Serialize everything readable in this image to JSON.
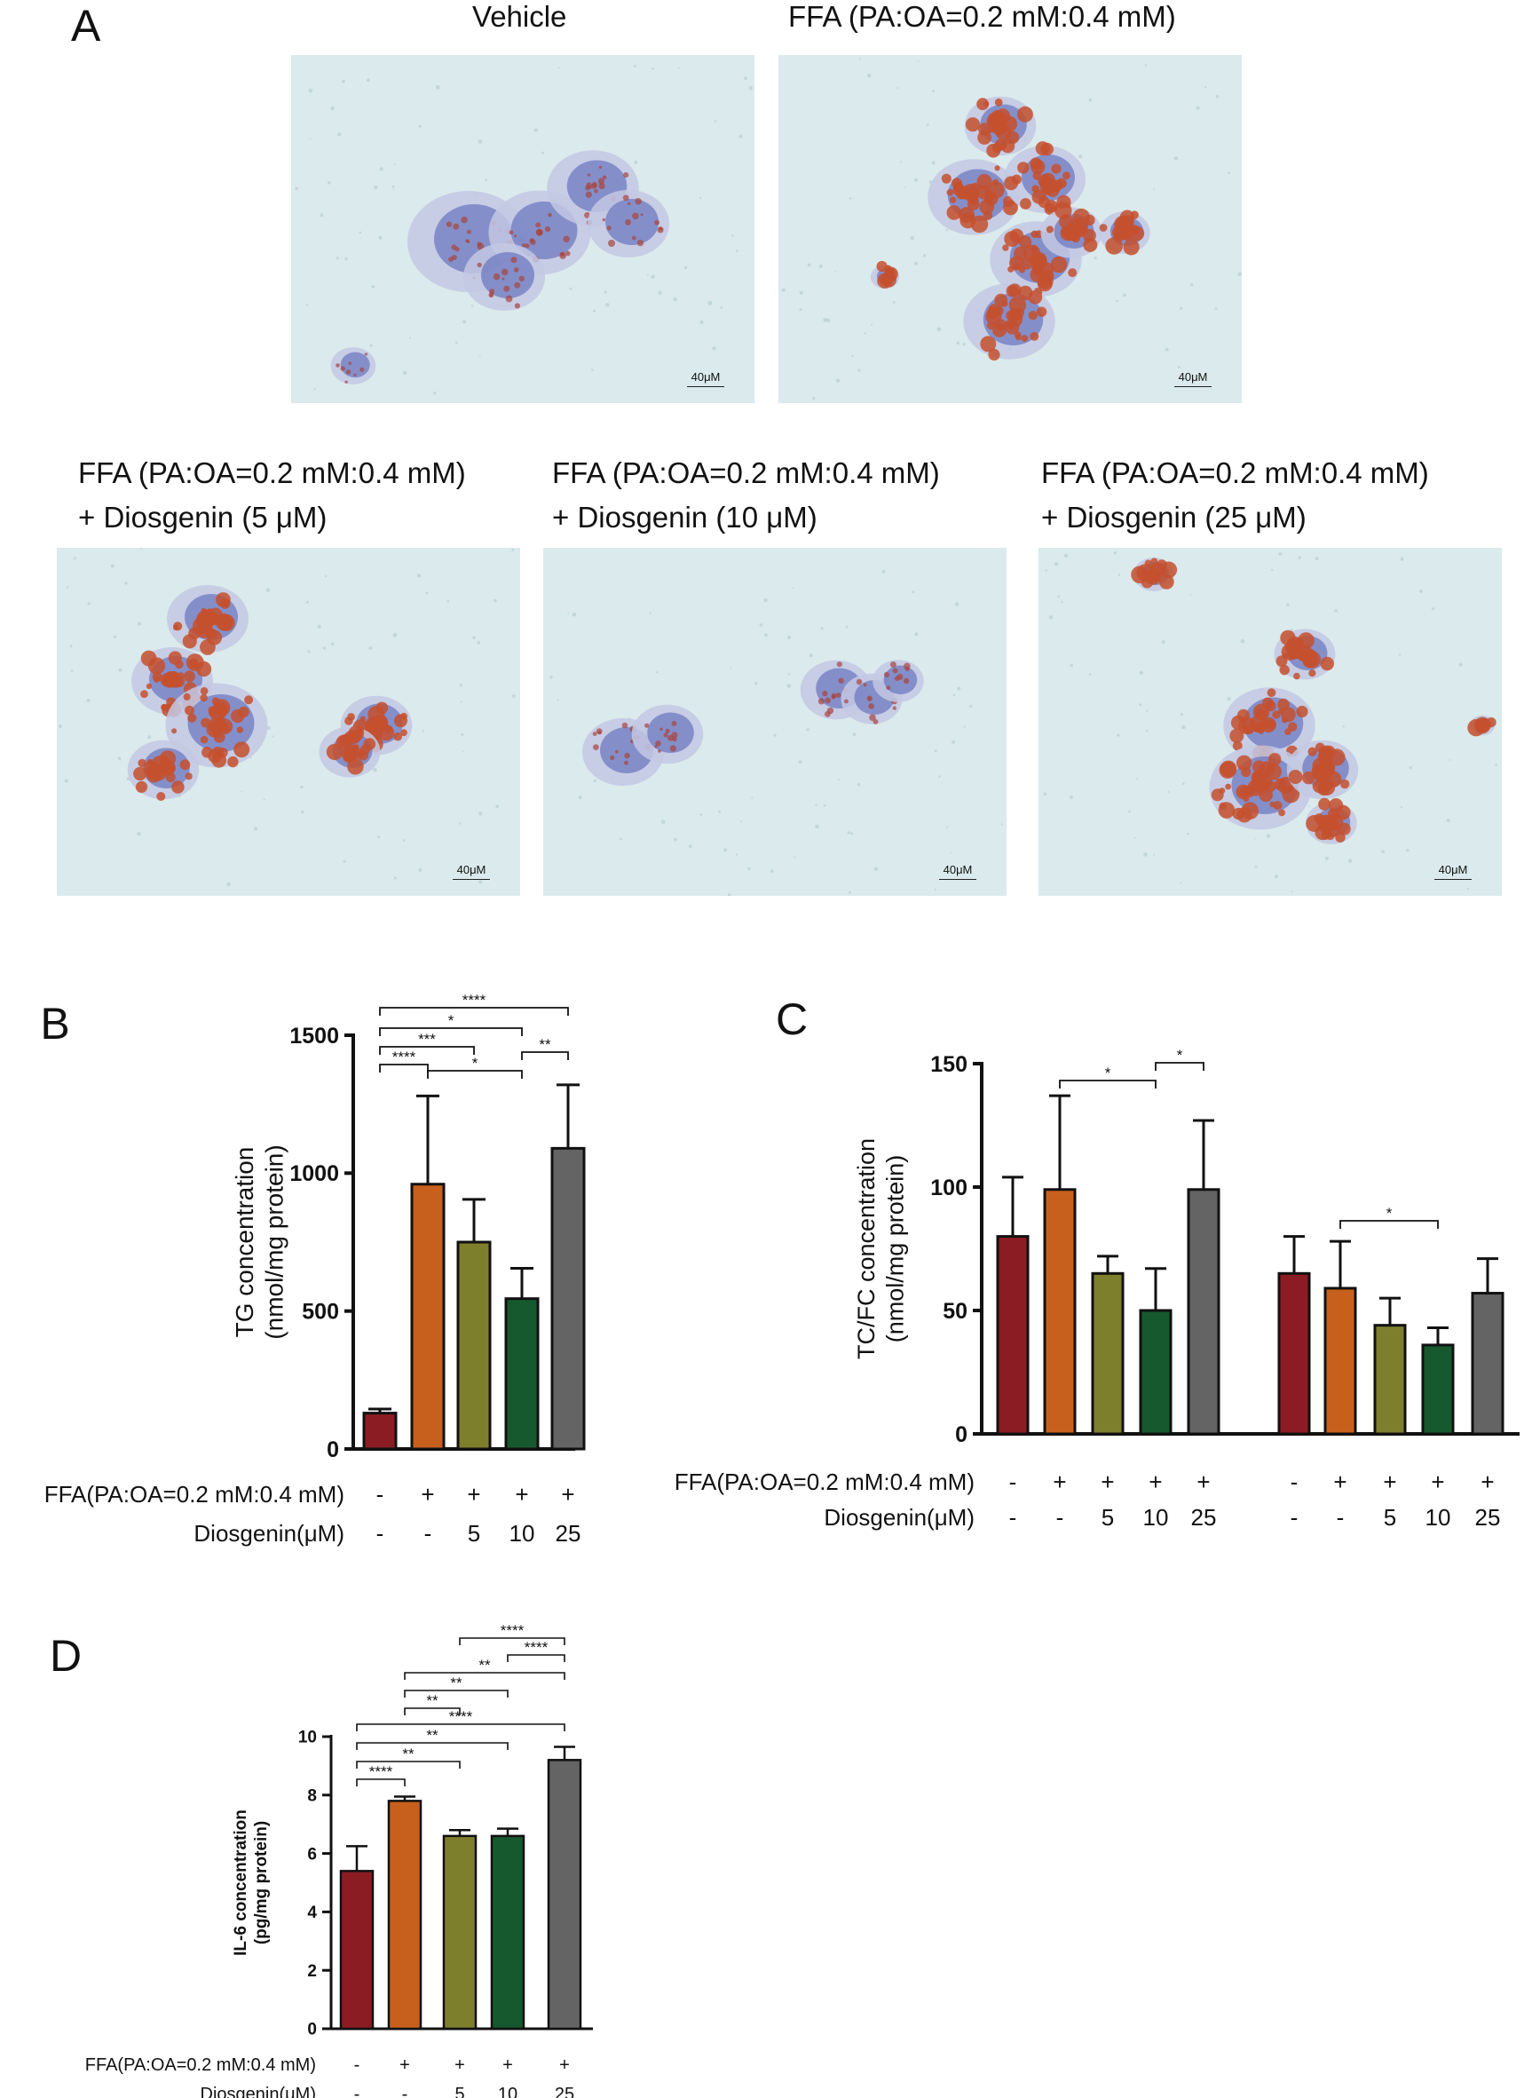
{
  "panel_a": {
    "label": "A",
    "images": [
      {
        "title_line1": "Vehicle",
        "title_line2": "",
        "scale": "40μM",
        "fat": "low"
      },
      {
        "title_line1": "FFA (PA:OA=0.2 mM:0.4 mM)",
        "title_line2": "",
        "scale": "40μM",
        "fat": "high"
      },
      {
        "title_line1": "FFA (PA:OA=0.2 mM:0.4 mM)",
        "title_line2": "+ Diosgenin (5 μM)",
        "scale": "40μM",
        "fat": "high"
      },
      {
        "title_line1": "FFA (PA:OA=0.2 mM:0.4 mM)",
        "title_line2": "+ Diosgenin (10 μM)",
        "scale": "40μM",
        "fat": "low"
      },
      {
        "title_line1": "FFA (PA:OA=0.2 mM:0.4 mM)",
        "title_line2": "+ Diosgenin (25 μM)",
        "scale": "40μM",
        "fat": "high"
      }
    ]
  },
  "colors": {
    "vehicle": "#8c1c24",
    "ffa": "#c8601d",
    "d5": "#7e7f2c",
    "d10": "#17592e",
    "d25": "#646464"
  },
  "treatment_rows": {
    "ffa_label": "FFA(PA:OA=0.2 mM:0.4 mM)",
    "dio_label": "Diosgenin(μM)",
    "ffa": [
      "-",
      "+",
      "+",
      "+",
      "+"
    ],
    "dio": [
      "-",
      "-",
      "5",
      "10",
      "25"
    ]
  },
  "chart_data": [
    {
      "panel": "B",
      "type": "bar",
      "ylabel_line1": "TG concentration",
      "ylabel_line2": "(nmol/mg protein)",
      "ylim": [
        0,
        1500
      ],
      "yticks": [
        "0",
        "500",
        "1000",
        "1500"
      ],
      "categories": [
        "Vehicle",
        "FFA",
        "FFA+Dio 5",
        "FFA+Dio 10",
        "FFA+Dio 25"
      ],
      "values": [
        130,
        960,
        750,
        545,
        1090
      ],
      "errors": [
        15,
        320,
        155,
        110,
        230
      ],
      "sig": [
        {
          "from": 0,
          "to": 1,
          "label": "****"
        },
        {
          "from": 0,
          "to": 2,
          "label": "***"
        },
        {
          "from": 0,
          "to": 3,
          "label": "*"
        },
        {
          "from": 0,
          "to": 4,
          "label": "****"
        },
        {
          "from": 1,
          "to": 3,
          "label": "*"
        },
        {
          "from": 3,
          "to": 4,
          "label": "**"
        }
      ]
    },
    {
      "panel": "C",
      "type": "bar",
      "ylabel_line1": "TC/FC concentration",
      "ylabel_line2": "(nmol/mg protein)",
      "ylim": [
        0,
        150
      ],
      "yticks": [
        "0",
        "50",
        "100",
        "150"
      ],
      "groups": [
        "TC",
        "FC"
      ],
      "series": [
        {
          "name": "TC",
          "values": [
            80,
            99,
            65,
            50,
            99
          ],
          "errors": [
            24,
            38,
            7,
            17,
            28
          ]
        },
        {
          "name": "FC",
          "values": [
            65,
            59,
            44,
            36,
            57
          ],
          "errors": [
            15,
            19,
            11,
            7,
            14
          ]
        }
      ],
      "sig": [
        {
          "group": 0,
          "from": 1,
          "to": 3,
          "label": "*"
        },
        {
          "group": 0,
          "from": 3,
          "to": 4,
          "label": "*"
        },
        {
          "group": 1,
          "from": 1,
          "to": 3,
          "label": "*"
        }
      ]
    },
    {
      "panel": "D",
      "type": "bar",
      "ylabel_line1": "IL-6 concentration",
      "ylabel_line2": "(pg/mg protein)",
      "ylim": [
        0,
        10
      ],
      "yticks": [
        "0",
        "2",
        "4",
        "6",
        "8",
        "10"
      ],
      "categories": [
        "Vehicle",
        "FFA",
        "FFA+Dio 5",
        "FFA+Dio 10",
        "FFA+Dio 25"
      ],
      "values": [
        5.4,
        7.8,
        6.6,
        6.6,
        9.2
      ],
      "errors": [
        0.85,
        0.15,
        0.2,
        0.25,
        0.45
      ],
      "sig": [
        {
          "from": 0,
          "to": 1,
          "label": "****"
        },
        {
          "from": 0,
          "to": 2,
          "label": "**"
        },
        {
          "from": 0,
          "to": 3,
          "label": "**"
        },
        {
          "from": 0,
          "to": 4,
          "label": "****"
        },
        {
          "from": 1,
          "to": 2,
          "label": "**"
        },
        {
          "from": 1,
          "to": 3,
          "label": "**"
        },
        {
          "from": 1,
          "to": 4,
          "label": "**"
        },
        {
          "from": 3,
          "to": 4,
          "label": "****"
        },
        {
          "from": 2,
          "to": 4,
          "label": "****"
        }
      ]
    }
  ]
}
